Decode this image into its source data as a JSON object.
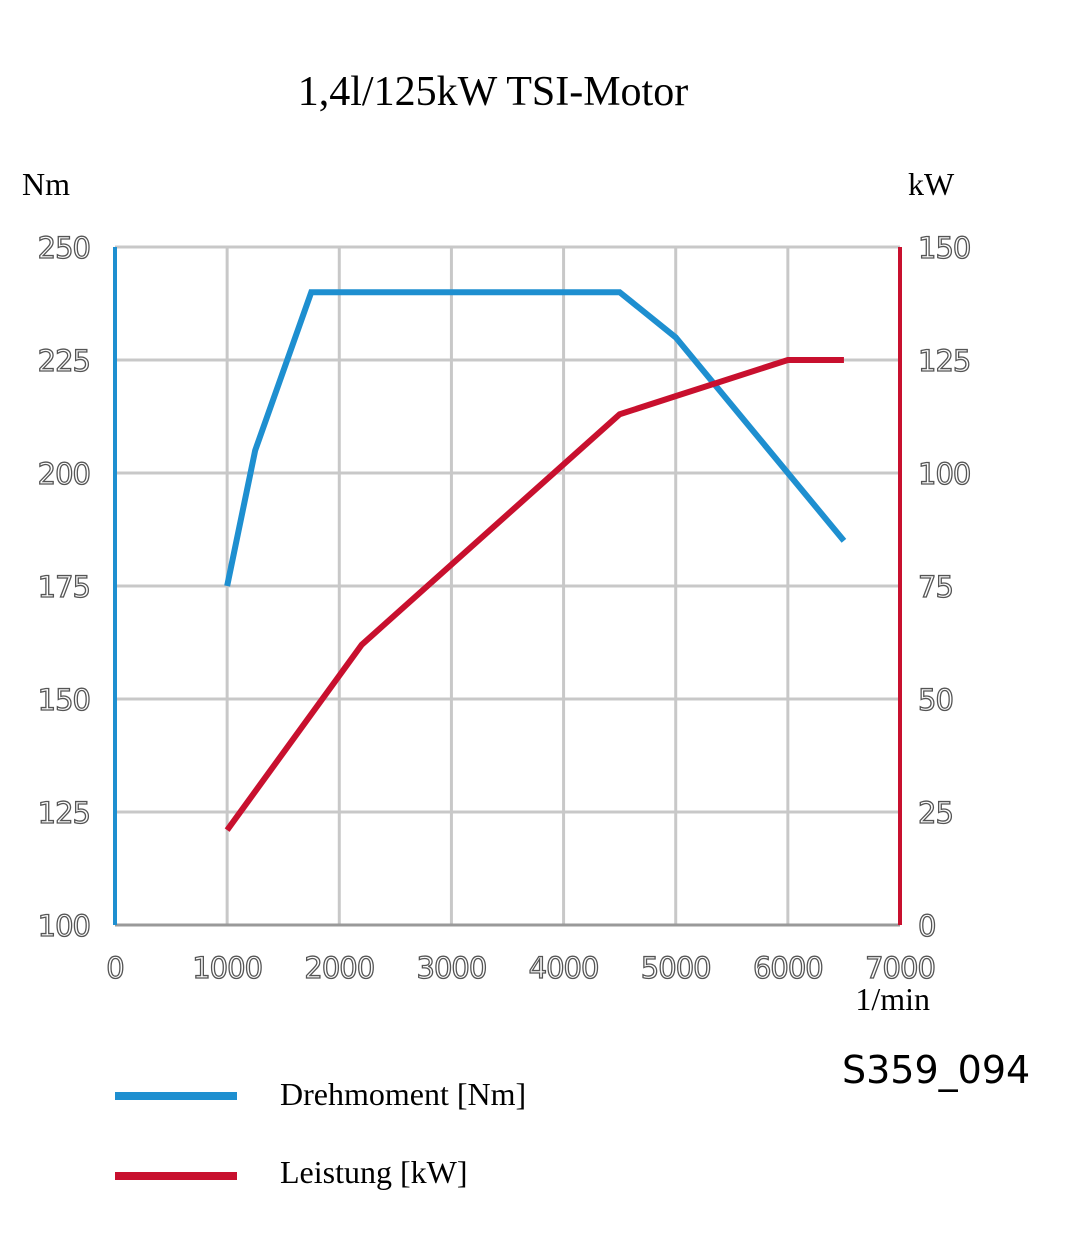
{
  "chart_data": {
    "type": "line",
    "title": "1,4l/125kW TSI-Motor",
    "xlabel": "1/min",
    "ylabel_left": "Nm",
    "ylabel_right": "kW",
    "xlim": [
      0,
      7000
    ],
    "ylim_left": [
      100,
      250
    ],
    "ylim_right": [
      0,
      150
    ],
    "x_ticks": [
      "0",
      "1000",
      "2000",
      "3000",
      "4000",
      "5000",
      "6000",
      "7000"
    ],
    "y_left_ticks": [
      "100",
      "125",
      "150",
      "175",
      "200",
      "225",
      "250"
    ],
    "y_right_ticks": [
      "0",
      "25",
      "50",
      "75",
      "100",
      "125",
      "150"
    ],
    "grid": true,
    "series": [
      {
        "name": "Drehmoment [Nm]",
        "axis": "left",
        "color": "#1e8fd0",
        "x": [
          1000,
          1250,
          1750,
          4500,
          5000,
          6500
        ],
        "y": [
          175,
          205,
          240,
          240,
          230,
          185
        ]
      },
      {
        "name": "Leistung [kW]",
        "axis": "right",
        "color": "#c8102e",
        "x": [
          1000,
          2200,
          4500,
          5000,
          6000,
          6500
        ],
        "y": [
          21,
          62,
          113,
          117,
          125,
          125
        ]
      }
    ],
    "legend_position": "bottom-left",
    "figure_id": "S359_094"
  }
}
